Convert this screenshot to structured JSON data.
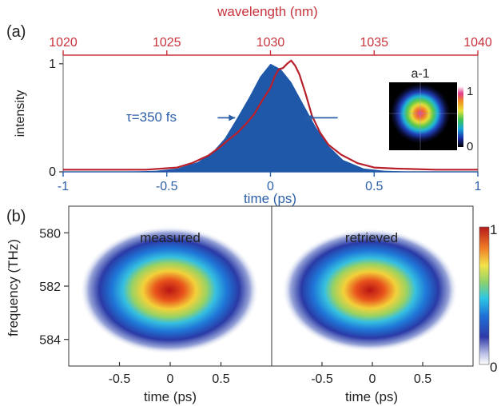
{
  "panel_a": {
    "label": "(a)",
    "inset_label": "a-1",
    "inset_colorbar_ticks": [
      "1",
      "0"
    ]
  },
  "panel_b": {
    "label": "(b)",
    "colorbar_ticks": [
      "1",
      "0"
    ]
  },
  "colors": {
    "measured_line": "#b81f2b",
    "spectrum_fill": "#1f58a8",
    "blue_text": "#2d5fa8",
    "red_axis": "#c8323c"
  },
  "chart_data": [
    {
      "type": "area",
      "panel": "(a)",
      "xlabel": "time (ps)",
      "ylabel": "intensity",
      "x2label": "wavelength (nm)",
      "xlim": [
        -1,
        1
      ],
      "ylim": [
        0,
        1.08
      ],
      "x2lim": [
        1020,
        1040
      ],
      "xticks": [
        -1,
        -0.5,
        0,
        0.5,
        1
      ],
      "xtick_labels": [
        "-1",
        "-0.5",
        "0",
        "0.5",
        "1"
      ],
      "yticks": [
        0,
        1
      ],
      "ytick_labels": [
        "0",
        "1"
      ],
      "x2ticks": [
        1020,
        1025,
        1030,
        1035,
        1040
      ],
      "x2tick_labels": [
        "1020",
        "1025",
        "1030",
        "1035",
        "1040"
      ],
      "annotation": "τ=350 fs",
      "annotation_arrows": {
        "left_x": -0.17,
        "right_x": 0.17,
        "y": 0.5
      },
      "series": [
        {
          "kind": "filled",
          "color": "#1f58a8",
          "x": [
            -1.0,
            -0.7,
            -0.55,
            -0.45,
            -0.35,
            -0.28,
            -0.22,
            -0.16,
            -0.1,
            -0.05,
            0.0,
            0.05,
            0.1,
            0.16,
            0.22,
            0.28,
            0.35,
            0.45,
            0.55,
            0.7,
            1.0
          ],
          "y": [
            0.0,
            0.0,
            0.01,
            0.03,
            0.09,
            0.18,
            0.31,
            0.5,
            0.7,
            0.88,
            1.0,
            0.95,
            0.83,
            0.62,
            0.41,
            0.24,
            0.11,
            0.03,
            0.01,
            0.0,
            0.0
          ]
        },
        {
          "kind": "line",
          "color": "#b81f2b",
          "x": [
            -1.0,
            -0.6,
            -0.45,
            -0.38,
            -0.3,
            -0.25,
            -0.2,
            -0.16,
            -0.12,
            -0.08,
            -0.04,
            0.0,
            0.02,
            0.04,
            0.06,
            0.08,
            0.1,
            0.12,
            0.14,
            0.17,
            0.2,
            0.24,
            0.28,
            0.34,
            0.42,
            0.5,
            0.6,
            0.8,
            1.0
          ],
          "y": [
            0.02,
            0.02,
            0.04,
            0.08,
            0.15,
            0.22,
            0.3,
            0.36,
            0.44,
            0.53,
            0.66,
            0.78,
            0.88,
            0.95,
            0.96,
            1.0,
            1.03,
            0.98,
            0.9,
            0.72,
            0.52,
            0.36,
            0.25,
            0.16,
            0.08,
            0.04,
            0.03,
            0.02,
            0.02
          ]
        }
      ]
    },
    {
      "type": "heatmap",
      "panel": "(b)",
      "title": "measured",
      "xlabel": "time (ps)",
      "ylabel": "frequency (THz)",
      "xlim": [
        -1,
        1
      ],
      "ylim": [
        579,
        585
      ],
      "xticks": [
        -0.5,
        0,
        0.5
      ],
      "xtick_labels": [
        "-0.5",
        "0",
        "0.5"
      ],
      "yticks": [
        580,
        582,
        584
      ],
      "ytick_labels": [
        "580",
        "582",
        "584"
      ],
      "peak": {
        "time_ps": 0.0,
        "frequency_THz": 582.0,
        "value": 1
      },
      "colorscale": "jet",
      "value_range": [
        0,
        1
      ]
    },
    {
      "type": "heatmap",
      "panel": "(b)",
      "title": "retrieved",
      "xlabel": "time (ps)",
      "xlim": [
        -1,
        1
      ],
      "ylim": [
        579,
        585
      ],
      "xticks": [
        -0.5,
        0,
        0.5
      ],
      "xtick_labels": [
        "-0.5",
        "0",
        "0.5"
      ],
      "peak": {
        "time_ps": 0.0,
        "frequency_THz": 582.0,
        "value": 1
      },
      "colorscale": "jet",
      "value_range": [
        0,
        1
      ]
    }
  ]
}
